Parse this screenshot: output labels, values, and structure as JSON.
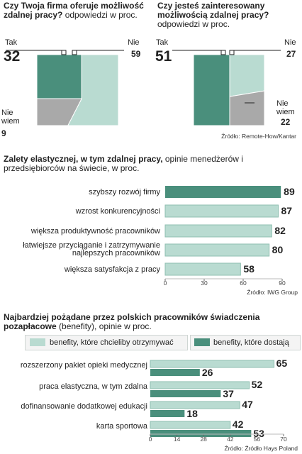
{
  "colors": {
    "dark": "#4a8f7c",
    "light": "#b9dbd1",
    "gray": "#a9a9a9"
  },
  "q1": {
    "title_bold": "Czy Twoja firma oferuje możliwość zdalnej pracy?",
    "title_rest": " odpowiedzi w proc.",
    "tak_label": "Tak",
    "tak_value": "32",
    "nie_label": "Nie",
    "nie_value": "59",
    "niewiem_label": "Nie wiem",
    "niewiem_value": "9"
  },
  "q2": {
    "title_bold": "Czy jesteś zainteresowany możliwością zdalnej pracy?",
    "title_rest": " odpowiedzi w proc.",
    "tak_label": "Tak",
    "tak_value": "51",
    "nie_label": "Nie",
    "nie_value": "27",
    "niewiem_label": "Nie wiem",
    "niewiem_value": "22",
    "source": "Źródło: Remote-How/Kantar"
  },
  "sec2": {
    "title_bold": "Zalety elastycznej, w tym zdalnej pracy,",
    "title_rest": " opinie menedżerów i przedsiębiorców na świecie, w proc.",
    "source": "Źródło: IWG Group"
  },
  "sec3": {
    "title_bold": "Najbardziej pożądane przez polskich pracowników świadczenia pozapłacowe",
    "title_rest": " (benefity), opinie  w proc.",
    "legend_want": "benefity, które chcieliby otrzymywać",
    "legend_get": "benefity, które dostają",
    "source": "Źródło: Źródło Hays Poland"
  },
  "chart_data": [
    {
      "type": "pie",
      "title": "Czy Twoja firma oferuje możliwość zdalnej pracy?",
      "labels": [
        "Tak",
        "Nie",
        "Nie wiem"
      ],
      "values": [
        32,
        59,
        9
      ]
    },
    {
      "type": "pie",
      "title": "Czy jesteś zainteresowany możliwością zdalnej pracy?",
      "labels": [
        "Tak",
        "Nie",
        "Nie wiem"
      ],
      "values": [
        51,
        27,
        22
      ]
    },
    {
      "type": "bar",
      "title": "Zalety elastycznej, w tym zdalnej pracy",
      "categories": [
        "szybszy rozwój firmy",
        "wzrost konkurencyjności",
        "większa produktywność pracowników",
        "łatwiejsze przyciąganie i zatrzymywanie najlepszych pracowników",
        "większa satysfakcja z pracy"
      ],
      "values": [
        89,
        87,
        82,
        80,
        58
      ],
      "xlim": [
        0,
        90
      ],
      "xticks": [
        0,
        30,
        60,
        90
      ]
    },
    {
      "type": "bar",
      "title": "Najbardziej pożądane przez polskich pracowników świadczenia pozapłacowe",
      "categories": [
        "rozszerzony pakiet opieki medycznej",
        "praca elastyczna, w tym zdalna",
        "dofinansowanie dodatkowej edukacji",
        "karta sportowa"
      ],
      "series": [
        {
          "name": "benefity, które chcieliby otrzymywać",
          "values": [
            65,
            52,
            47,
            42
          ]
        },
        {
          "name": "benefity, które dostają",
          "values": [
            26,
            37,
            18,
            53
          ]
        }
      ],
      "xlim": [
        0,
        70
      ],
      "xticks": [
        0,
        14,
        28,
        42,
        56,
        70
      ]
    }
  ]
}
